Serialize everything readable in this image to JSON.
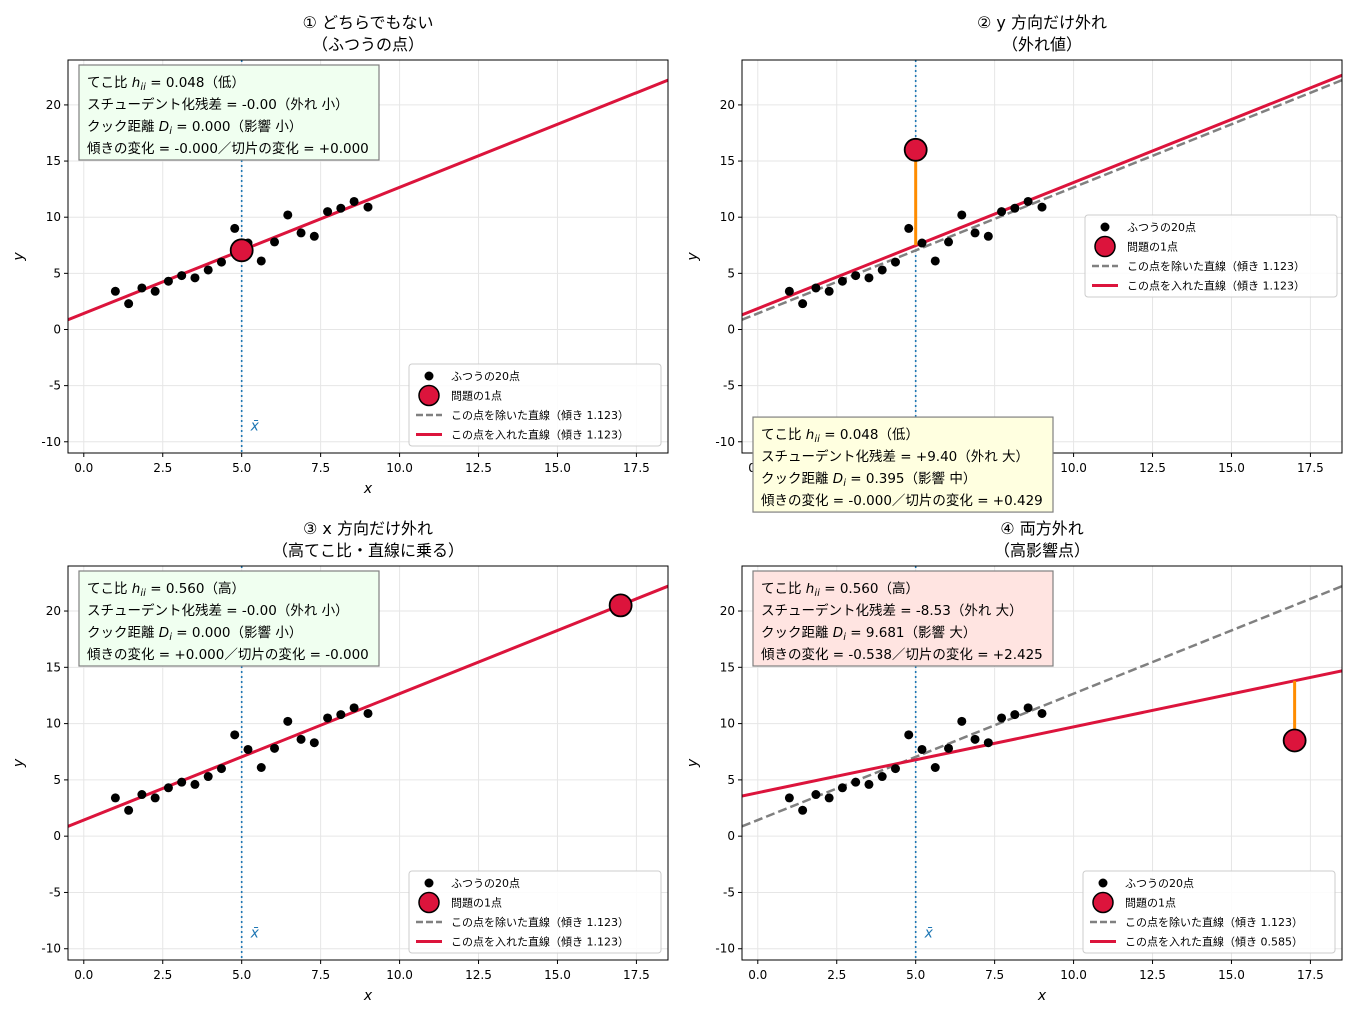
{
  "colors": {
    "normal_points": "#000000",
    "problem_point": "#dc143c",
    "fit_with": "#dc143c",
    "fit_without": "#808080",
    "mean_line": "#1f77b4",
    "residual": "#ff8c00",
    "box_green": "#f0fff0",
    "box_yellow": "#ffffe0",
    "box_red": "#ffe4e1",
    "grid": "#e6e6e6"
  },
  "chart_data": [
    {
      "type": "scatter",
      "title": "① どちらでもない\n（ふつうの点）",
      "xlabel": "x",
      "ylabel": "y",
      "xlim": [
        -0.5,
        18.5
      ],
      "ylim": [
        -11,
        24
      ],
      "xticks": [
        "0.0",
        "2.5",
        "5.0",
        "7.5",
        "10.0",
        "12.5",
        "15.0",
        "17.5"
      ],
      "yticks": [
        "-10",
        "-5",
        "0",
        "5",
        "10",
        "15",
        "20"
      ],
      "grid": true,
      "xbar": 5.0,
      "xbar_label": "x̄",
      "legend_position": "bottom-right",
      "normal_points": {
        "name": "ふつうの20点",
        "x": [
          1.0,
          1.42,
          1.84,
          2.26,
          2.68,
          3.1,
          3.52,
          3.94,
          4.36,
          4.78,
          5.2,
          5.62,
          6.04,
          6.46,
          6.88,
          7.3,
          7.72,
          8.14,
          8.56,
          9.0
        ],
        "y": [
          3.4,
          2.3,
          3.7,
          3.4,
          4.3,
          4.8,
          4.6,
          5.3,
          6.0,
          9.0,
          7.7,
          6.1,
          7.8,
          10.2,
          8.6,
          8.3,
          10.5,
          10.8,
          11.4,
          10.9
        ]
      },
      "problem_point": {
        "name": "問題の1点",
        "x": 5.0,
        "y": 7.05
      },
      "line_without": {
        "name": "この点を除いた直線（傾き 1.123）",
        "slope": 1.123,
        "intercept": 1.43
      },
      "line_with": {
        "name": "この点を入れた直線（傾き 1.123）",
        "slope": 1.123,
        "intercept": 1.43
      },
      "residual_segment": null,
      "stats_box": {
        "color": "green",
        "position": "top-left",
        "leverage_prefix": "てこ比 ",
        "leverage_symbol": "h",
        "leverage_sub": "ii",
        "leverage_value": " = 0.048（低）",
        "line2": "スチューデント化残差 = -0.00（外れ 小）",
        "cook_prefix": "クック距離 ",
        "cook_symbol": "D",
        "cook_sub": "i",
        "cook_value": " = 0.000（影響 小）",
        "line4": "傾きの変化 = -0.000／切片の変化 = +0.000"
      }
    },
    {
      "type": "scatter",
      "title": "② y 方向だけ外れ\n（外れ値）",
      "xlabel": "x",
      "ylabel": "y",
      "xlim": [
        -0.5,
        18.5
      ],
      "ylim": [
        -11,
        24
      ],
      "xticks": [
        "0.0",
        "2.5",
        "5.0",
        "7.5",
        "10.0",
        "12.5",
        "15.0",
        "17.5"
      ],
      "yticks": [
        "-10",
        "-5",
        "0",
        "5",
        "10",
        "15",
        "20"
      ],
      "grid": true,
      "xbar": 5.0,
      "xbar_label": "x̄",
      "legend_position": "center-right",
      "normal_points": {
        "name": "ふつうの20点",
        "x": [
          1.0,
          1.42,
          1.84,
          2.26,
          2.68,
          3.1,
          3.52,
          3.94,
          4.36,
          4.78,
          5.2,
          5.62,
          6.04,
          6.46,
          6.88,
          7.3,
          7.72,
          8.14,
          8.56,
          9.0
        ],
        "y": [
          3.4,
          2.3,
          3.7,
          3.4,
          4.3,
          4.8,
          4.6,
          5.3,
          6.0,
          9.0,
          7.7,
          6.1,
          7.8,
          10.2,
          8.6,
          8.3,
          10.5,
          10.8,
          11.4,
          10.9
        ]
      },
      "problem_point": {
        "name": "問題の1点",
        "x": 5.0,
        "y": 16.0
      },
      "line_without": {
        "name": "この点を除いた直線（傾き 1.123）",
        "slope": 1.123,
        "intercept": 1.43
      },
      "line_with": {
        "name": "この点を入れた直線（傾き 1.123）",
        "slope": 1.123,
        "intercept": 1.86
      },
      "residual_segment": {
        "x": 5.0,
        "y1": 7.5,
        "y2": 16.0
      },
      "stats_box": {
        "color": "yellow",
        "position": "bottom-left",
        "leverage_prefix": "てこ比 ",
        "leverage_symbol": "h",
        "leverage_sub": "ii",
        "leverage_value": " = 0.048（低）",
        "line2": "スチューデント化残差 = +9.40（外れ 大）",
        "cook_prefix": "クック距離 ",
        "cook_symbol": "D",
        "cook_sub": "i",
        "cook_value": " = 0.395（影響 中）",
        "line4": "傾きの変化 = -0.000／切片の変化 = +0.429"
      }
    },
    {
      "type": "scatter",
      "title": "③ x 方向だけ外れ\n（高てこ比・直線に乗る）",
      "xlabel": "x",
      "ylabel": "y",
      "xlim": [
        -0.5,
        18.5
      ],
      "ylim": [
        -11,
        24
      ],
      "xticks": [
        "0.0",
        "2.5",
        "5.0",
        "7.5",
        "10.0",
        "12.5",
        "15.0",
        "17.5"
      ],
      "yticks": [
        "-10",
        "-5",
        "0",
        "5",
        "10",
        "15",
        "20"
      ],
      "grid": true,
      "xbar": 5.0,
      "xbar_label": "x̄",
      "legend_position": "bottom-right",
      "normal_points": {
        "name": "ふつうの20点",
        "x": [
          1.0,
          1.42,
          1.84,
          2.26,
          2.68,
          3.1,
          3.52,
          3.94,
          4.36,
          4.78,
          5.2,
          5.62,
          6.04,
          6.46,
          6.88,
          7.3,
          7.72,
          8.14,
          8.56,
          9.0
        ],
        "y": [
          3.4,
          2.3,
          3.7,
          3.4,
          4.3,
          4.8,
          4.6,
          5.3,
          6.0,
          9.0,
          7.7,
          6.1,
          7.8,
          10.2,
          8.6,
          8.3,
          10.5,
          10.8,
          11.4,
          10.9
        ]
      },
      "problem_point": {
        "name": "問題の1点",
        "x": 17.0,
        "y": 20.5
      },
      "line_without": {
        "name": "この点を除いた直線（傾き 1.123）",
        "slope": 1.123,
        "intercept": 1.43
      },
      "line_with": {
        "name": "この点を入れた直線（傾き 1.123）",
        "slope": 1.123,
        "intercept": 1.43
      },
      "residual_segment": null,
      "stats_box": {
        "color": "green",
        "position": "top-left",
        "leverage_prefix": "てこ比 ",
        "leverage_symbol": "h",
        "leverage_sub": "ii",
        "leverage_value": " = 0.560（高）",
        "line2": "スチューデント化残差 = -0.00（外れ 小）",
        "cook_prefix": "クック距離 ",
        "cook_symbol": "D",
        "cook_sub": "i",
        "cook_value": " = 0.000（影響 小）",
        "line4": "傾きの変化 = +0.000／切片の変化 = -0.000"
      }
    },
    {
      "type": "scatter",
      "title": "④ 両方外れ\n（高影響点）",
      "xlabel": "x",
      "ylabel": "y",
      "xlim": [
        -0.5,
        18.5
      ],
      "ylim": [
        -11,
        24
      ],
      "xticks": [
        "0.0",
        "2.5",
        "5.0",
        "7.5",
        "10.0",
        "12.5",
        "15.0",
        "17.5"
      ],
      "yticks": [
        "-10",
        "-5",
        "0",
        "5",
        "10",
        "15",
        "20"
      ],
      "grid": true,
      "xbar": 5.0,
      "xbar_label": "x̄",
      "legend_position": "bottom-right",
      "normal_points": {
        "name": "ふつうの20点",
        "x": [
          1.0,
          1.42,
          1.84,
          2.26,
          2.68,
          3.1,
          3.52,
          3.94,
          4.36,
          4.78,
          5.2,
          5.62,
          6.04,
          6.46,
          6.88,
          7.3,
          7.72,
          8.14,
          8.56,
          9.0
        ],
        "y": [
          3.4,
          2.3,
          3.7,
          3.4,
          4.3,
          4.8,
          4.6,
          5.3,
          6.0,
          9.0,
          7.7,
          6.1,
          7.8,
          10.2,
          8.6,
          8.3,
          10.5,
          10.8,
          11.4,
          10.9
        ]
      },
      "problem_point": {
        "name": "問題の1点",
        "x": 17.0,
        "y": 8.5
      },
      "line_without": {
        "name": "この点を除いた直線（傾き 1.123）",
        "slope": 1.123,
        "intercept": 1.43
      },
      "line_with": {
        "name": "この点を入れた直線（傾き 0.585）",
        "slope": 0.585,
        "intercept": 3.86
      },
      "residual_segment": {
        "x": 17.0,
        "y1": 8.5,
        "y2": 13.8
      },
      "stats_box": {
        "color": "red",
        "position": "top-left",
        "leverage_prefix": "てこ比 ",
        "leverage_symbol": "h",
        "leverage_sub": "ii",
        "leverage_value": " = 0.560（高）",
        "line2": "スチューデント化残差 = -8.53（外れ 大）",
        "cook_prefix": "クック距離 ",
        "cook_symbol": "D",
        "cook_sub": "i",
        "cook_value": " = 9.681（影響 大）",
        "line4": "傾きの変化 = -0.538／切片の変化 = +2.425"
      }
    }
  ]
}
